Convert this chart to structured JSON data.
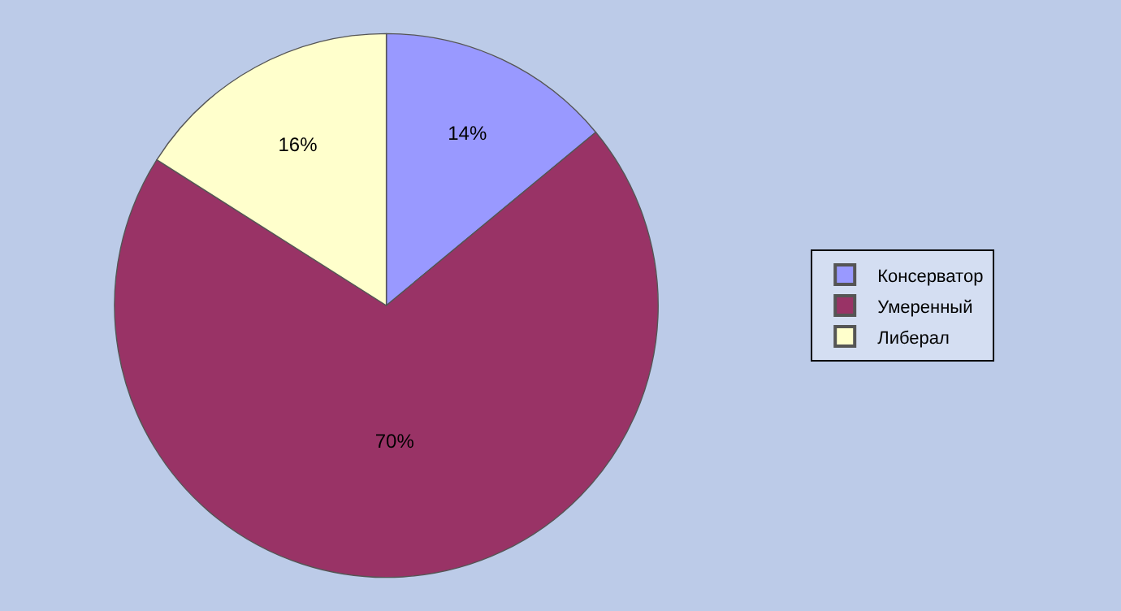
{
  "chart_data": {
    "type": "pie",
    "categories": [
      "Консерватор",
      "Умеренный",
      "Либерал"
    ],
    "values": [
      14,
      70,
      16
    ],
    "colors": [
      "#9999ff",
      "#993366",
      "#ffffcc"
    ],
    "value_labels": [
      "14%",
      "70%",
      "16%"
    ],
    "legend": "right"
  }
}
